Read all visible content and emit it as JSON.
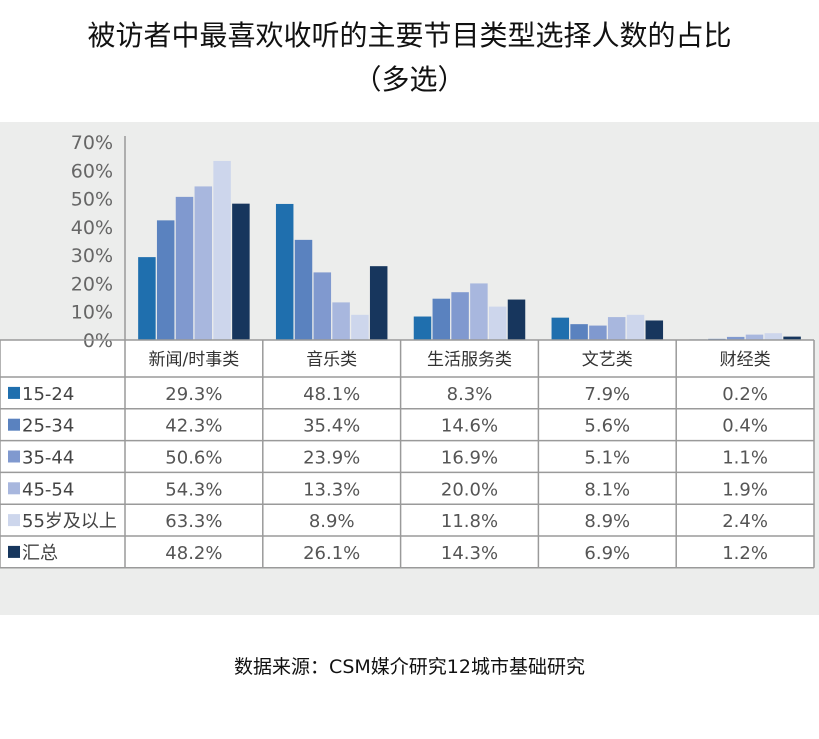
{
  "title_line1": "被访者中最喜欢收听的主要节目类型选择人数的占比",
  "title_line2": "（多选）",
  "source": "数据来源：CSM媒介研究12城市基础研究",
  "colors": {
    "panel_bg": "#ecedec",
    "grid": "#9a9a9a",
    "table_bg": "#ffffff"
  },
  "chart_data": {
    "type": "bar",
    "ylim": [
      0,
      70
    ],
    "yticks": [
      "0%",
      "10%",
      "20%",
      "30%",
      "40%",
      "50%",
      "60%",
      "70%"
    ],
    "categories": [
      "新闻/时事类",
      "音乐类",
      "生活服务类",
      "文艺类",
      "财经类"
    ],
    "series": [
      {
        "name": "15-24",
        "color": "#1f6fae",
        "values": [
          29.3,
          48.1,
          8.3,
          7.9,
          0.2
        ],
        "labels": [
          "29.3%",
          "48.1%",
          "8.3%",
          "7.9%",
          "0.2%"
        ]
      },
      {
        "name": "25-34",
        "color": "#5a82bf",
        "values": [
          42.3,
          35.4,
          14.6,
          5.6,
          0.4
        ],
        "labels": [
          "42.3%",
          "35.4%",
          "14.6%",
          "5.6%",
          "0.4%"
        ]
      },
      {
        "name": "35-44",
        "color": "#8099cf",
        "values": [
          50.6,
          23.9,
          16.9,
          5.1,
          1.1
        ],
        "labels": [
          "50.6%",
          "23.9%",
          "16.9%",
          "5.1%",
          "1.1%"
        ]
      },
      {
        "name": "45-54",
        "color": "#a8b7de",
        "values": [
          54.3,
          13.3,
          20.0,
          8.1,
          1.9
        ],
        "labels": [
          "54.3%",
          "13.3%",
          "20.0%",
          "8.1%",
          "1.9%"
        ]
      },
      {
        "name": "55岁及以上",
        "color": "#cdd6ec",
        "values": [
          63.3,
          8.9,
          11.8,
          8.9,
          2.4
        ],
        "labels": [
          "63.3%",
          "8.9%",
          "11.8%",
          "8.9%",
          "2.4%"
        ]
      },
      {
        "name": "汇总",
        "color": "#17365d",
        "values": [
          48.2,
          26.1,
          14.3,
          6.9,
          1.2
        ],
        "labels": [
          "48.2%",
          "26.1%",
          "14.3%",
          "6.9%",
          "1.2%"
        ]
      }
    ]
  }
}
